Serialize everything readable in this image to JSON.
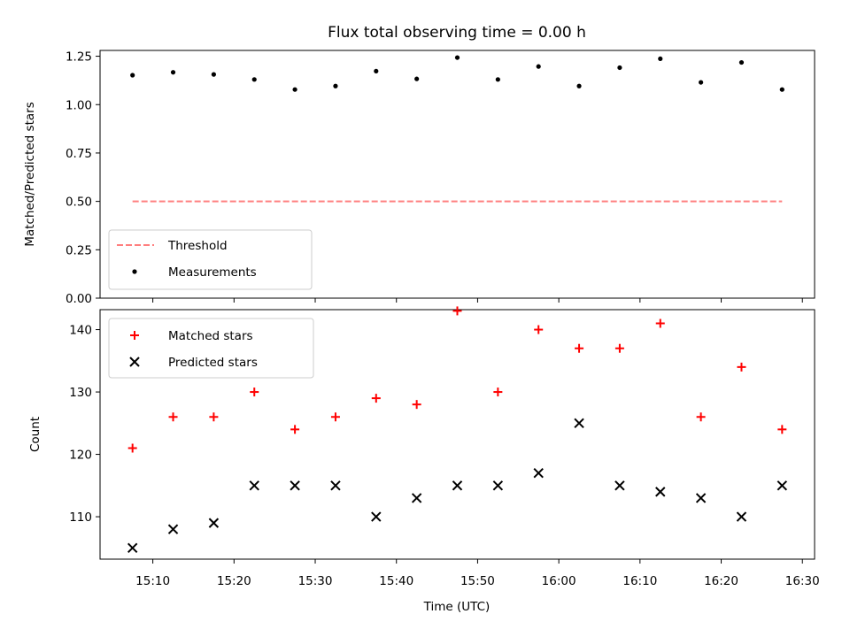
{
  "chart_data": [
    {
      "type": "scatter",
      "title": "Flux total observing time = 0.00 h",
      "xlabel": "",
      "ylabel": "Matched/Predicted stars",
      "ylim": [
        0,
        1.28
      ],
      "yticks": [
        0.0,
        0.25,
        0.5,
        0.75,
        1.0,
        1.25
      ],
      "ytick_labels": [
        "0.00",
        "0.25",
        "0.50",
        "0.75",
        "1.00",
        "1.25"
      ],
      "legend_position": "lower-left",
      "threshold": {
        "name": "Threshold",
        "value": 0.5,
        "color": "#ff7f7f",
        "style": "dashed",
        "x_start": "15:07:30",
        "x_end": "16:27:30"
      },
      "series": [
        {
          "name": "Measurements",
          "color": "#000000",
          "marker": "dot",
          "x": [
            "15:07:30",
            "15:12:30",
            "15:17:30",
            "15:22:30",
            "15:27:30",
            "15:32:30",
            "15:37:30",
            "15:42:30",
            "15:47:30",
            "15:52:30",
            "15:57:30",
            "16:02:30",
            "16:07:30",
            "16:12:30",
            "16:17:30",
            "16:22:30",
            "16:27:30"
          ],
          "values": [
            1.152,
            1.167,
            1.156,
            1.13,
            1.078,
            1.096,
            1.173,
            1.133,
            1.243,
            1.13,
            1.197,
            1.096,
            1.191,
            1.237,
            1.115,
            1.218,
            1.078
          ]
        }
      ]
    },
    {
      "type": "scatter",
      "title": "",
      "xlabel": "Time (UTC)",
      "ylabel": "Count",
      "ylim": [
        103.2,
        143.2
      ],
      "yticks": [
        110,
        120,
        130,
        140
      ],
      "ytick_labels": [
        "110",
        "120",
        "130",
        "140"
      ],
      "xlim": [
        "15:03:30",
        "16:31:30"
      ],
      "xticks": [
        "15:10",
        "15:20",
        "15:30",
        "15:40",
        "15:50",
        "16:00",
        "16:10",
        "16:20",
        "16:30"
      ],
      "legend_position": "upper-left",
      "series": [
        {
          "name": "Matched stars",
          "color": "#ff0000",
          "marker": "plus",
          "x": [
            "15:07:30",
            "15:12:30",
            "15:17:30",
            "15:22:30",
            "15:27:30",
            "15:32:30",
            "15:37:30",
            "15:42:30",
            "15:47:30",
            "15:52:30",
            "15:57:30",
            "16:02:30",
            "16:07:30",
            "16:12:30",
            "16:17:30",
            "16:22:30",
            "16:27:30"
          ],
          "values": [
            121,
            126,
            126,
            130,
            124,
            126,
            129,
            128,
            143,
            130,
            140,
            137,
            137,
            141,
            126,
            134,
            124
          ]
        },
        {
          "name": "Predicted stars",
          "color": "#000000",
          "marker": "x",
          "x": [
            "15:07:30",
            "15:12:30",
            "15:17:30",
            "15:22:30",
            "15:27:30",
            "15:32:30",
            "15:37:30",
            "15:42:30",
            "15:47:30",
            "15:52:30",
            "15:57:30",
            "16:02:30",
            "16:07:30",
            "16:12:30",
            "16:17:30",
            "16:22:30",
            "16:27:30"
          ],
          "values": [
            105,
            108,
            109,
            115,
            115,
            115,
            110,
            113,
            115,
            115,
            117,
            125,
            115,
            114,
            113,
            110,
            115
          ]
        }
      ]
    }
  ]
}
